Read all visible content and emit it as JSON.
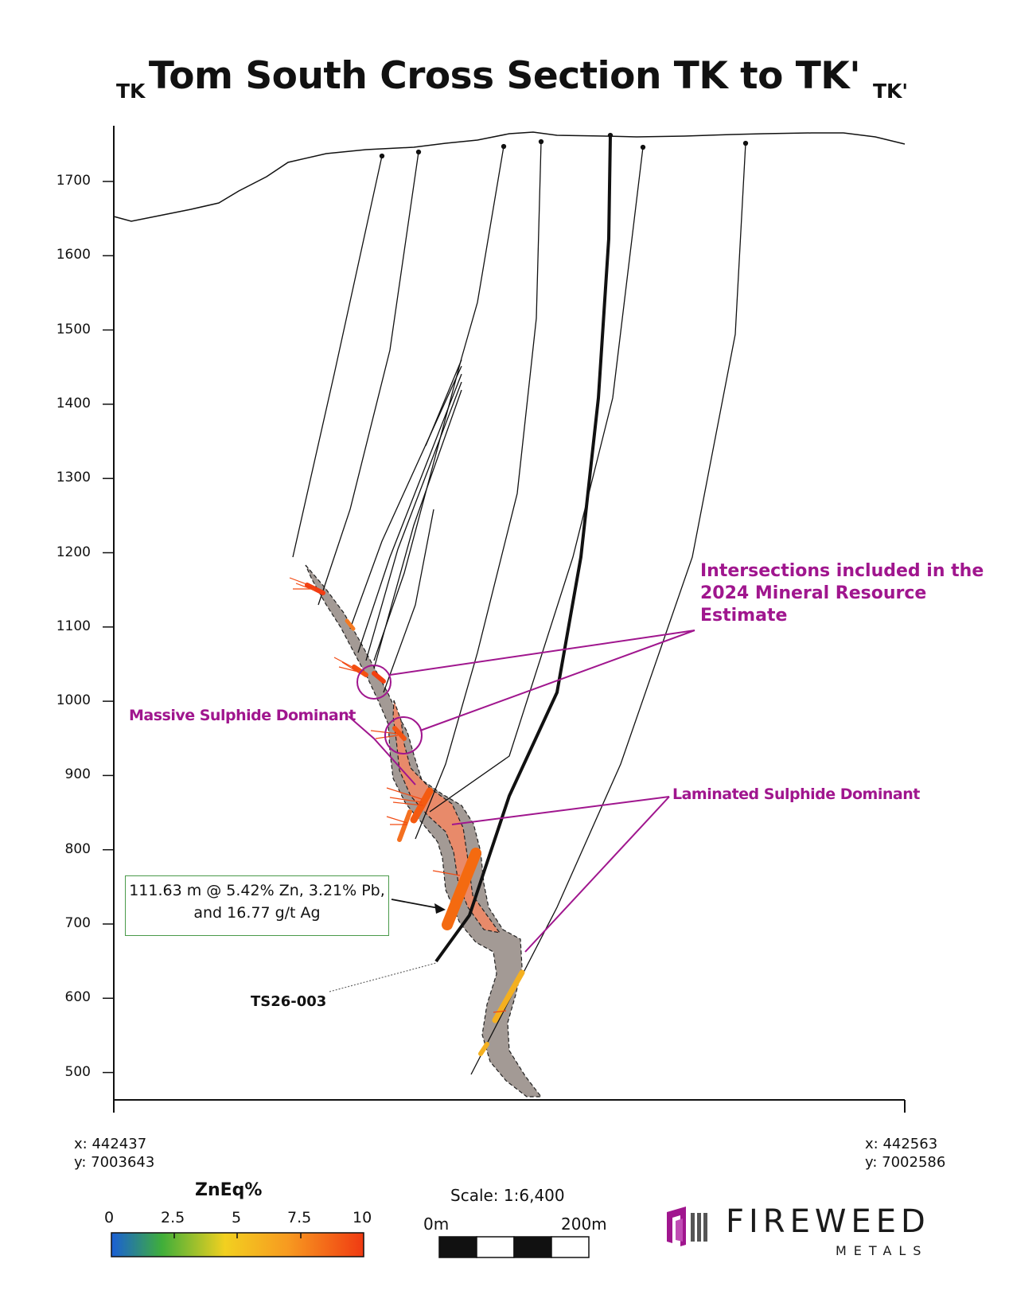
{
  "title": "Tom South Cross Section TK to TK'",
  "section_start_label": "TK",
  "section_end_label": "TK'",
  "y_axis_ticks": [
    "1700",
    "1600",
    "1500",
    "1400",
    "1300",
    "1200",
    "1100",
    "1000",
    "900",
    "800",
    "700",
    "600",
    "500"
  ],
  "coord_left": {
    "x": "x: 442437",
    "y": "y: 7003643"
  },
  "coord_right": {
    "x": "x: 442563",
    "y": "y: 7002586"
  },
  "annotations": {
    "resource_estimate": [
      "Intersections included in the",
      "2024 Mineral Resource",
      "Estimate"
    ],
    "massive_sulphide": "Massive Sulphide Dominant",
    "laminated_sulphide": "Laminated Sulphide Dominant",
    "intercept_line1": "111.63 m @ 5.42% Zn, 3.21% Pb,",
    "intercept_line2": "and 16.77 g/t Ag",
    "hole_id": "TS26-003"
  },
  "legend": {
    "title": "ZnEq%",
    "ticks": [
      "0",
      "2.5",
      "5",
      "7.5",
      "10"
    ],
    "colors": [
      "#1a5fd6",
      "#3fae3a",
      "#f2d020",
      "#f79a20",
      "#f03a12"
    ]
  },
  "scale": {
    "label": "Scale: 1:6,400",
    "start": "0m",
    "end": "200m"
  },
  "logo": {
    "name": "FIREWEED",
    "sub": "METALS",
    "color": "#a0168e"
  },
  "colors": {
    "annotation": "#a0168e",
    "massive_zone": "#e88a6a",
    "laminated_zone": "#a39a95"
  }
}
